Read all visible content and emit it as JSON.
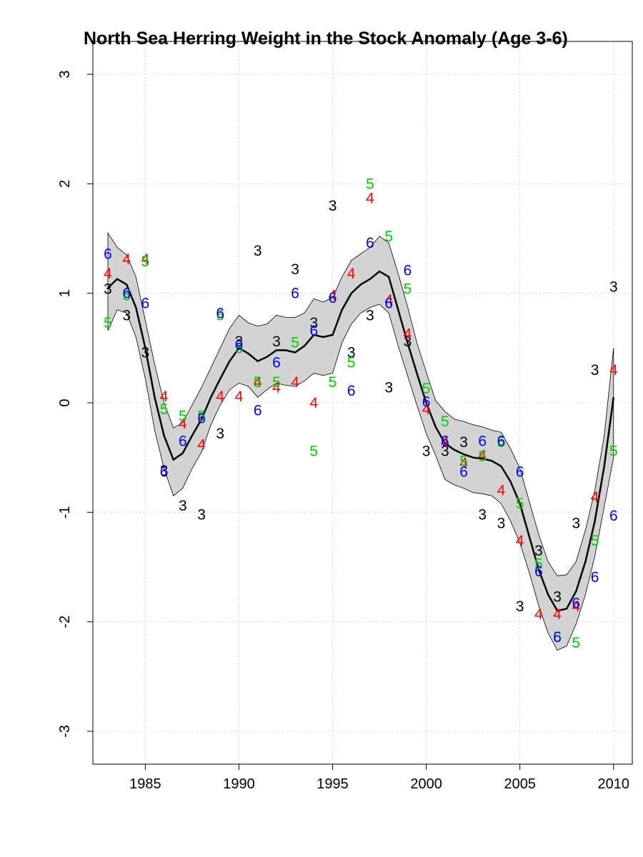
{
  "chart_data": {
    "type": "scatter",
    "title": "North Sea Herring Weight in the Stock Anomaly (Age 3-6)",
    "xlabel": "",
    "ylabel": "",
    "xlim": [
      1982.2,
      2011
    ],
    "ylim": [
      -3.3,
      3.3
    ],
    "xticks": [
      1985,
      1990,
      1995,
      2000,
      2005,
      2010
    ],
    "yticks": [
      -3,
      -2,
      -1,
      0,
      1,
      2,
      3
    ],
    "grid": true,
    "colors": {
      "3": "#000000",
      "4": "#ff0000",
      "5": "#00cd00",
      "6": "#0000ff",
      "band": "#d3d3d3",
      "line": "#000000"
    },
    "series": [
      {
        "label": "3",
        "x": [
          1983,
          1984,
          1985,
          1986,
          1987,
          1988,
          1989,
          1990,
          1991,
          1992,
          1993,
          1994,
          1995,
          1996,
          1997,
          1998,
          1999,
          2000,
          2001,
          2002,
          2003,
          2004,
          2005,
          2006,
          2007,
          2008,
          2009,
          2010
        ],
        "y": [
          1.04,
          0.8,
          0.46,
          -0.62,
          -0.94,
          -1.02,
          -0.28,
          0.56,
          1.39,
          0.56,
          1.22,
          0.73,
          1.8,
          0.46,
          0.8,
          0.14,
          0.56,
          -0.44,
          -0.44,
          -0.36,
          -1.02,
          -1.1,
          -1.86,
          -1.35,
          -1.77,
          -1.1,
          0.3,
          1.06
        ]
      },
      {
        "label": "4",
        "x": [
          1983,
          1984,
          1985,
          1986,
          1987,
          1988,
          1989,
          1990,
          1991,
          1992,
          1993,
          1994,
          1995,
          1996,
          1997,
          1998,
          1999,
          2000,
          2001,
          2002,
          2003,
          2004,
          2005,
          2006,
          2007,
          2008,
          2009,
          2010
        ],
        "y": [
          1.18,
          1.31,
          1.31,
          0.06,
          -0.19,
          -0.38,
          0.06,
          0.06,
          0.19,
          0.14,
          0.19,
          0.0,
          0.98,
          1.18,
          1.87,
          0.94,
          0.63,
          -0.06,
          -0.36,
          -0.55,
          -0.48,
          -0.8,
          -1.26,
          -1.93,
          -1.93,
          -1.86,
          -0.86,
          0.3
        ]
      },
      {
        "label": "5",
        "x": [
          1983,
          1984,
          1985,
          1986,
          1987,
          1988,
          1989,
          1990,
          1991,
          1992,
          1993,
          1994,
          1995,
          1996,
          1997,
          1998,
          1999,
          2000,
          2001,
          2002,
          2003,
          2004,
          2005,
          2006,
          2007,
          2008,
          2009,
          2010
        ],
        "y": [
          0.73,
          0.98,
          1.29,
          -0.06,
          -0.12,
          -0.12,
          0.8,
          0.5,
          0.19,
          0.19,
          0.55,
          -0.44,
          0.19,
          0.37,
          2.0,
          1.52,
          1.04,
          0.13,
          -0.17,
          -0.53,
          -0.49,
          -0.36,
          -0.92,
          -1.47,
          -2.14,
          -2.19,
          -1.26,
          -0.44
        ]
      },
      {
        "label": "6",
        "x": [
          1983,
          1984,
          1985,
          1986,
          1987,
          1988,
          1989,
          1990,
          1991,
          1992,
          1993,
          1994,
          1995,
          1996,
          1997,
          1998,
          1999,
          2000,
          2001,
          2002,
          2003,
          2004,
          2005,
          2006,
          2007,
          2008,
          2009,
          2010
        ],
        "y": [
          1.36,
          1.0,
          0.91,
          -0.63,
          -0.35,
          -0.14,
          0.82,
          0.53,
          -0.07,
          0.37,
          1.0,
          0.66,
          0.96,
          0.11,
          1.46,
          0.91,
          1.21,
          0.01,
          -0.35,
          -0.63,
          -0.35,
          -0.35,
          -0.63,
          -1.54,
          -2.14,
          -1.83,
          -1.59,
          -1.03
        ]
      }
    ],
    "smooth": {
      "x": [
        1983,
        1983.5,
        1984,
        1984.5,
        1985,
        1985.5,
        1986,
        1986.5,
        1987,
        1987.5,
        1988,
        1988.5,
        1989,
        1989.5,
        1990,
        1990.5,
        1991,
        1991.5,
        1992,
        1992.5,
        1993,
        1993.5,
        1994,
        1994.5,
        1995,
        1995.5,
        1996,
        1996.5,
        1997,
        1997.5,
        1998,
        1998.5,
        1999,
        1999.5,
        2000,
        2000.5,
        2001,
        2001.5,
        2002,
        2002.5,
        2003,
        2003.5,
        2004,
        2004.5,
        2005,
        2005.5,
        2006,
        2006.5,
        2007,
        2007.5,
        2008,
        2008.5,
        2009,
        2009.5,
        2010
      ],
      "fit": [
        1.05,
        1.13,
        1.08,
        0.87,
        0.5,
        0.05,
        -0.3,
        -0.52,
        -0.46,
        -0.3,
        -0.15,
        0.05,
        0.22,
        0.38,
        0.5,
        0.45,
        0.38,
        0.42,
        0.48,
        0.48,
        0.46,
        0.52,
        0.62,
        0.6,
        0.62,
        0.85,
        1.0,
        1.08,
        1.13,
        1.2,
        1.15,
        0.85,
        0.55,
        0.27,
        0.0,
        -0.22,
        -0.37,
        -0.43,
        -0.47,
        -0.5,
        -0.51,
        -0.53,
        -0.58,
        -0.72,
        -0.92,
        -1.22,
        -1.52,
        -1.75,
        -1.9,
        -1.88,
        -1.72,
        -1.45,
        -1.08,
        -0.58,
        0.05
      ],
      "lower": [
        0.66,
        0.85,
        0.82,
        0.6,
        0.22,
        -0.25,
        -0.6,
        -0.85,
        -0.78,
        -0.6,
        -0.45,
        -0.2,
        -0.02,
        0.12,
        0.18,
        0.15,
        0.05,
        0.12,
        0.18,
        0.16,
        0.15,
        0.2,
        0.27,
        0.25,
        0.27,
        0.55,
        0.72,
        0.82,
        0.87,
        0.9,
        0.82,
        0.52,
        0.25,
        -0.02,
        -0.28,
        -0.48,
        -0.7,
        -0.75,
        -0.78,
        -0.82,
        -0.83,
        -0.85,
        -0.92,
        -1.08,
        -1.28,
        -1.55,
        -1.85,
        -2.1,
        -2.26,
        -2.22,
        -2.02,
        -1.75,
        -1.4,
        -0.95,
        -0.5
      ],
      "upper": [
        1.55,
        1.42,
        1.35,
        1.15,
        0.75,
        0.35,
        0.0,
        -0.23,
        -0.18,
        -0.02,
        0.14,
        0.32,
        0.5,
        0.68,
        0.8,
        0.73,
        0.7,
        0.72,
        0.8,
        0.78,
        0.78,
        0.82,
        0.95,
        0.92,
        0.96,
        1.15,
        1.3,
        1.36,
        1.42,
        1.52,
        1.46,
        1.18,
        0.88,
        0.55,
        0.28,
        0.02,
        -0.08,
        -0.15,
        -0.17,
        -0.2,
        -0.22,
        -0.25,
        -0.27,
        -0.42,
        -0.6,
        -0.9,
        -1.2,
        -1.45,
        -1.58,
        -1.57,
        -1.45,
        -1.16,
        -0.8,
        -0.3,
        0.5
      ]
    }
  }
}
